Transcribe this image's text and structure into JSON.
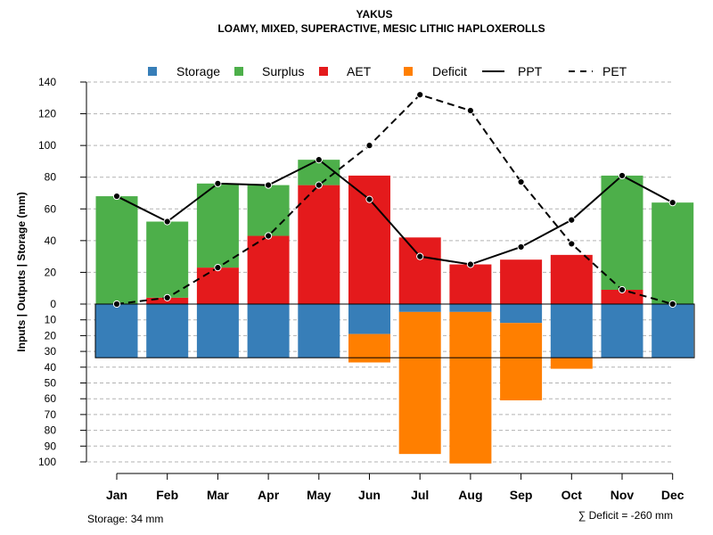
{
  "chart_data": {
    "type": "bar",
    "title": "YAKUS",
    "subtitle": "LOAMY, MIXED, SUPERACTIVE, MESIC LITHIC HAPLOXEROLLS",
    "ylabel": "Inputs | Outputs | Storage    (mm)",
    "categories": [
      "Jan",
      "Feb",
      "Mar",
      "Apr",
      "May",
      "Jun",
      "Jul",
      "Aug",
      "Sep",
      "Oct",
      "Nov",
      "Dec"
    ],
    "ylim_upper": [
      0,
      140
    ],
    "ylim_lower": [
      0,
      100
    ],
    "upper_ticks": [
      0,
      20,
      40,
      60,
      80,
      100,
      120,
      140
    ],
    "lower_ticks": [
      10,
      20,
      30,
      40,
      50,
      60,
      70,
      80,
      90,
      100
    ],
    "storage_capacity_mm": 34,
    "series": [
      {
        "name": "Storage",
        "color": "#377EB8",
        "values": [
          34,
          34,
          34,
          34,
          34,
          19,
          5,
          5,
          12,
          34,
          34,
          34
        ]
      },
      {
        "name": "Surplus",
        "color": "#4DAF4A",
        "values": [
          68,
          48,
          53,
          32,
          16,
          0,
          0,
          0,
          0,
          0,
          72,
          64
        ]
      },
      {
        "name": "AET",
        "color": "#E41A1C",
        "values": [
          0,
          4,
          23,
          43,
          75,
          81,
          42,
          25,
          28,
          31,
          9,
          0
        ]
      },
      {
        "name": "Deficit",
        "color": "#FF7F00",
        "values": [
          0,
          0,
          0,
          0,
          0,
          18,
          90,
          96,
          49,
          7,
          0,
          0
        ]
      },
      {
        "name": "PPT",
        "color": "#000000",
        "style": "solid",
        "values": [
          68,
          52,
          76,
          75,
          91,
          66,
          30,
          25,
          36,
          53,
          81,
          64
        ]
      },
      {
        "name": "PET",
        "color": "#000000",
        "style": "dashed",
        "values": [
          0,
          4,
          23,
          43,
          75,
          100,
          132,
          122,
          77,
          38,
          9,
          0
        ]
      }
    ],
    "footer_left": "Storage: 34 mm",
    "footer_right": "∑ Deficit = -260 mm"
  }
}
